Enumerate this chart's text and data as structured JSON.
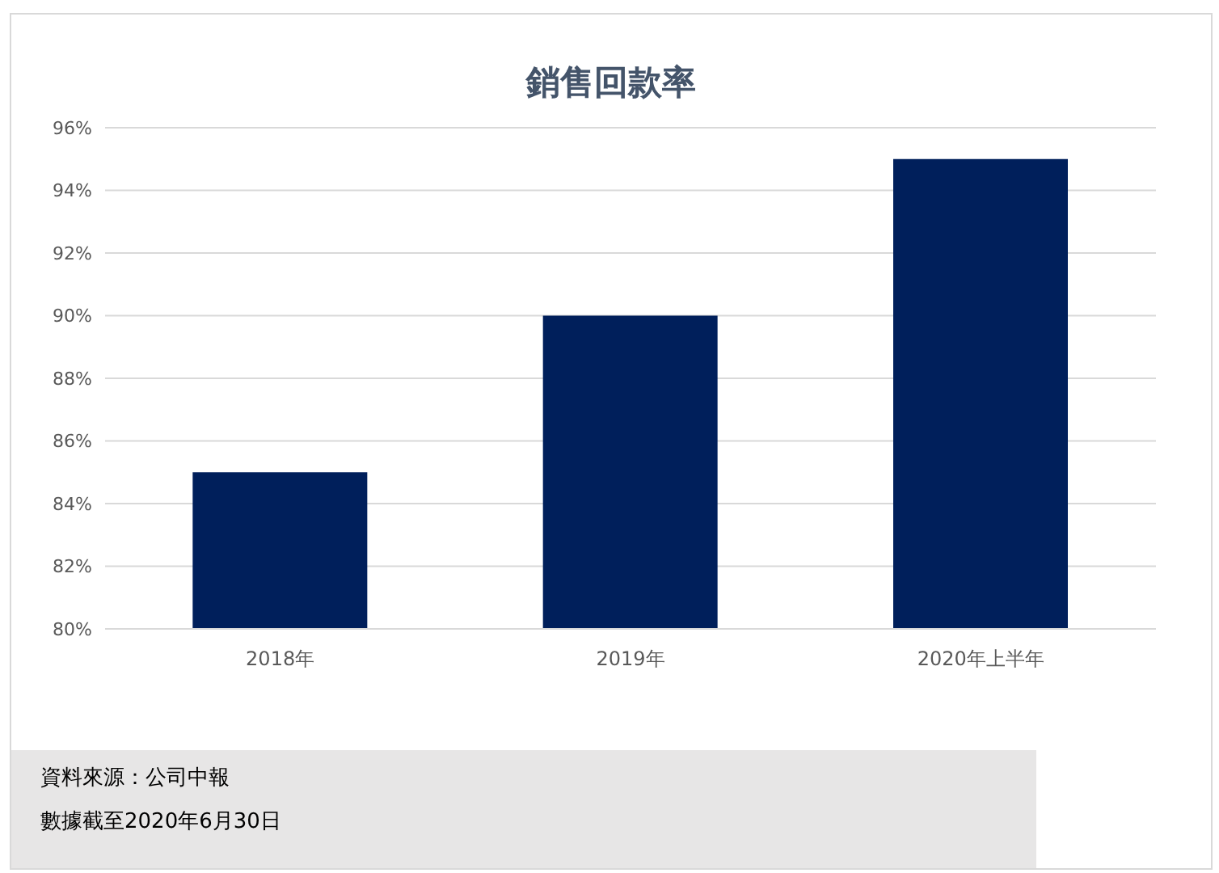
{
  "chart_data": {
    "type": "bar",
    "title": "銷售回款率",
    "categories": [
      "2018年",
      "2019年",
      "2020年上半年"
    ],
    "values": [
      85,
      90,
      95
    ],
    "color": "#001f5b",
    "ylim": [
      80,
      96
    ],
    "yticks": [
      {
        "value": 80,
        "label": "80%"
      },
      {
        "value": 82,
        "label": "82%"
      },
      {
        "value": 84,
        "label": "84%"
      },
      {
        "value": 86,
        "label": "86%"
      },
      {
        "value": 88,
        "label": "88%"
      },
      {
        "value": 90,
        "label": "90%"
      },
      {
        "value": 92,
        "label": "92%"
      },
      {
        "value": 94,
        "label": "94%"
      },
      {
        "value": 96,
        "label": "96%"
      }
    ],
    "grid": "y",
    "annotations": [
      "資料來源：公司中報",
      "數據截至2020年6月30日"
    ]
  }
}
